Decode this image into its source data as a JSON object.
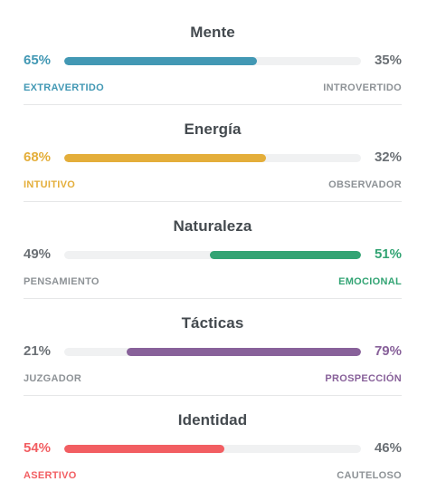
{
  "traits": [
    {
      "title": "Mente",
      "left_pct": "65%",
      "right_pct": "35%",
      "left_label": "EXTRAVERTIDO",
      "right_label": "INTROVERTIDO",
      "dominant": "left",
      "value_fraction": 0.65,
      "color": "#4298b4"
    },
    {
      "title": "Energía",
      "left_pct": "68%",
      "right_pct": "32%",
      "left_label": "INTUITIVO",
      "right_label": "OBSERVADOR",
      "dominant": "left",
      "value_fraction": 0.68,
      "color": "#e4ae3a"
    },
    {
      "title": "Naturaleza",
      "left_pct": "49%",
      "right_pct": "51%",
      "left_label": "PENSAMIENTO",
      "right_label": "EMOCIONAL",
      "dominant": "right",
      "value_fraction": 0.51,
      "color": "#33a474"
    },
    {
      "title": "Tácticas",
      "left_pct": "21%",
      "right_pct": "79%",
      "left_label": "JUZGADOR",
      "right_label": "PROSPECCIÓN",
      "dominant": "right",
      "value_fraction": 0.79,
      "color": "#88619a"
    },
    {
      "title": "Identidad",
      "left_pct": "54%",
      "right_pct": "46%",
      "left_label": "ASERTIVO",
      "right_label": "CAUTELOSO",
      "dominant": "left",
      "value_fraction": 0.54,
      "color": "#f25e62"
    }
  ],
  "colors": {
    "neutral_text": "#6b7075",
    "neutral_label": "#8d9296",
    "track": "#f0f1f2",
    "title": "#444a4f"
  }
}
